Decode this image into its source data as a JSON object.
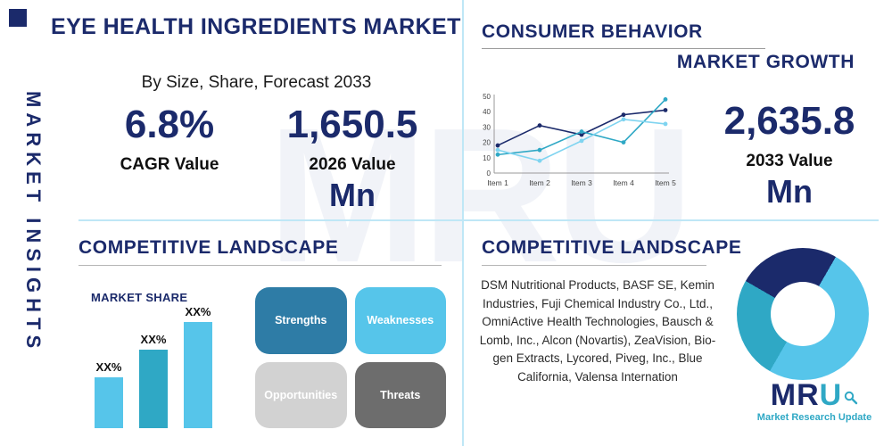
{
  "palette": {
    "navy": "#1b2a6b",
    "teal": "#2fa8c5",
    "light_blue": "#56c5ea",
    "pale_blue_divider": "#bfe7f6",
    "gray_light": "#d2d2d2",
    "gray_dark": "#6d6d6d"
  },
  "sidebar": {
    "label": "MARKET INSIGHTS"
  },
  "header": {
    "title": "EYE HEALTH INGREDIENTS MARKET",
    "subtitle": "By Size, Share, Forecast 2033"
  },
  "stats": {
    "cagr": {
      "value": "6.8%",
      "label": "CAGR Value"
    },
    "value_2026": {
      "value": "1,650.5",
      "label": "2026 Value",
      "unit": "Mn"
    },
    "value_2033": {
      "value": "2,635.8",
      "label": "2033 Value",
      "unit": "Mn"
    }
  },
  "sections": {
    "consumer_behavior": {
      "title": "CONSUMER BEHAVIOR"
    },
    "market_growth": {
      "title": "MARKET GROWTH"
    },
    "competitive_landscape_left": {
      "title": "COMPETITIVE LANDSCAPE",
      "market_share_label": "MARKET SHARE"
    },
    "competitive_landscape_right": {
      "title": "COMPETITIVE LANDSCAPE",
      "companies": "DSM Nutritional Products, BASF SE, Kemin Industries, Fuji Chemical Industry Co., Ltd., OmniActive Health Technologies, Bausch & Lomb, Inc., Alcon (Novartis), ZeaVision, Bio-gen Extracts, Lycored, Piveg, Inc., Blue California, Valensa Internation"
    }
  },
  "swot": [
    {
      "label": "Strengths",
      "color": "#2e7ca6"
    },
    {
      "label": "Weaknesses",
      "color": "#56c5ea"
    },
    {
      "label": "Opportunities",
      "color": "#d2d2d2"
    },
    {
      "label": "Threats",
      "color": "#6d6d6d"
    }
  ],
  "logo": {
    "text_primary": "MR",
    "text_accent": "U",
    "tagline": "Market Research Update"
  },
  "watermark": "MRU",
  "chart_data": [
    {
      "type": "line",
      "title": "Consumer behavior trend (values estimated from pixels)",
      "x": [
        "Item 1",
        "Item 2",
        "Item 3",
        "Item 4",
        "Item 5"
      ],
      "ylim": [
        0,
        50
      ],
      "yticks": [
        0,
        10,
        20,
        30,
        40,
        50
      ],
      "legend": "none",
      "grid": false,
      "series": [
        {
          "name": "series-navy",
          "color": "#1b2a6b",
          "values": [
            18,
            31,
            25,
            38,
            41
          ]
        },
        {
          "name": "series-teal",
          "color": "#2fa8c5",
          "values": [
            12,
            15,
            27,
            20,
            48
          ]
        },
        {
          "name": "series-light-blue",
          "color": "#7fd4f0",
          "values": [
            15,
            8,
            21,
            35,
            32
          ]
        }
      ]
    },
    {
      "type": "bar",
      "title": "MARKET SHARE",
      "categories": [
        "XX%",
        "XX%",
        "XX%"
      ],
      "values": [
        26,
        40,
        54
      ],
      "colors": [
        "#56c5ea",
        "#2fa8c5",
        "#56c5ea"
      ],
      "note": "bar heights estimated; data labels are placeholder XX%"
    },
    {
      "type": "pie",
      "donut": true,
      "title": "Competitive landscape share (slice sizes estimated)",
      "slices": [
        {
          "label": "segment-navy",
          "value": 25,
          "color": "#1b2a6b"
        },
        {
          "label": "segment-light-blue",
          "value": 50,
          "color": "#56c5ea"
        },
        {
          "label": "segment-teal",
          "value": 25,
          "color": "#2fa8c5"
        }
      ]
    }
  ]
}
